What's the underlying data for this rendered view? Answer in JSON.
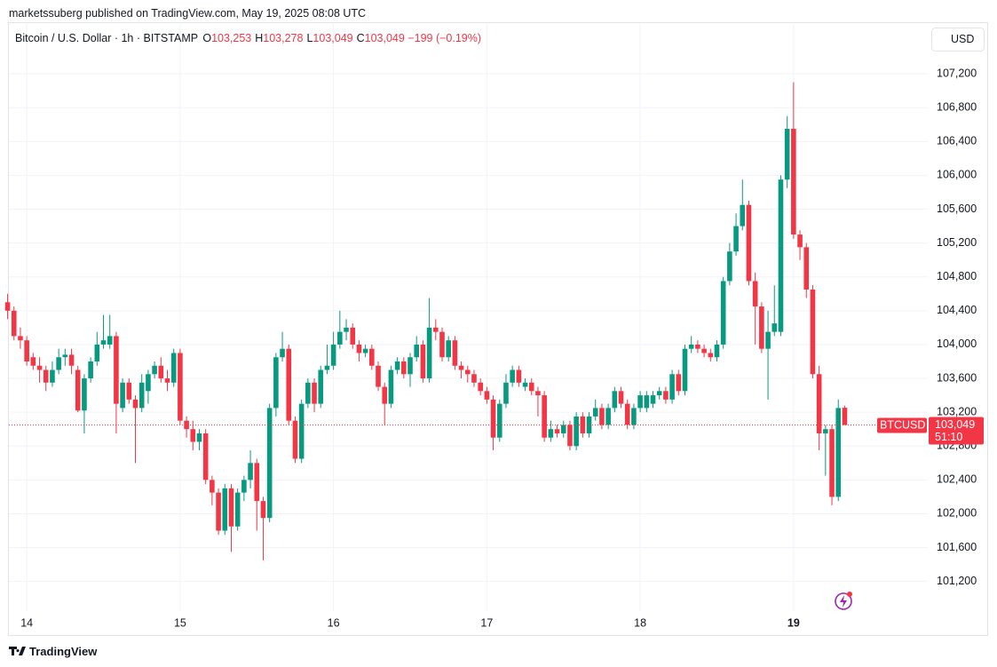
{
  "chart_data": {
    "type": "candlestick",
    "published": "marketssuberg published on TradingView.com, May 19, 2025 08:08 UTC",
    "symbol": "Bitcoin / U.S. Dollar · 1h · BITSTAMP",
    "ohlc_labels": [
      {
        "key": "O",
        "value": "103,253"
      },
      {
        "key": "H",
        "value": "103,278"
      },
      {
        "key": "L",
        "value": "103,049"
      },
      {
        "key": "C",
        "value": "103,049"
      }
    ],
    "change": "−199 (−0.19%)",
    "currency": "USD",
    "ticker": "BTCUSD",
    "last_price_label": "103,049",
    "countdown": "51:10",
    "brand": "TradingView",
    "up_color": "#089981",
    "down_color": "#f23645",
    "grid": true,
    "xlim": [
      0.2,
      144
    ],
    "xticks": [
      {
        "value": 3,
        "label": "14"
      },
      {
        "value": 27,
        "label": "15"
      },
      {
        "value": 51,
        "label": "16"
      },
      {
        "value": 75,
        "label": "17"
      },
      {
        "value": 99,
        "label": "18"
      },
      {
        "value": 123,
        "label": "19"
      }
    ],
    "ylim": [
      100850,
      107810
    ],
    "yticks": [
      {
        "value": 101200,
        "label": "101,200"
      },
      {
        "value": 101600,
        "label": "101,600"
      },
      {
        "value": 102000,
        "label": "102,000"
      },
      {
        "value": 102400,
        "label": "102,400"
      },
      {
        "value": 102800,
        "label": "102,800"
      },
      {
        "value": 103200,
        "label": "103,200"
      },
      {
        "value": 103600,
        "label": "103,600"
      },
      {
        "value": 104000,
        "label": "104,000"
      },
      {
        "value": 104400,
        "label": "104,400"
      },
      {
        "value": 104800,
        "label": "104,800"
      },
      {
        "value": 105200,
        "label": "105,200"
      },
      {
        "value": 105600,
        "label": "105,600"
      },
      {
        "value": 106000,
        "label": "106,000"
      },
      {
        "value": 106400,
        "label": "106,400"
      },
      {
        "value": 106800,
        "label": "106,800"
      },
      {
        "value": 107200,
        "label": "107,200"
      }
    ],
    "series": {
      "open": [
        104500,
        104400,
        104100,
        104050,
        103850,
        103750,
        103700,
        103550,
        103700,
        103850,
        103880,
        103700,
        103220,
        103600,
        103800,
        104000,
        104000,
        104100,
        103250,
        103550,
        103350,
        103250,
        103450,
        103650,
        103750,
        103600,
        103550,
        103900,
        103100,
        103000,
        102850,
        102950,
        102400,
        102250,
        101800,
        102300,
        101850,
        102250,
        102400,
        102600,
        102150,
        101950,
        103250,
        103850,
        103950,
        103100,
        102650,
        103300,
        103550,
        103300,
        103700,
        103750,
        104000,
        104150,
        104200,
        104000,
        103900,
        103950,
        103750,
        103500,
        103300,
        103700,
        103800,
        103650,
        103850,
        104000,
        103600,
        104200,
        104150,
        103850,
        104050,
        103750,
        103700,
        103650,
        103550,
        103450,
        103350,
        102900,
        103300,
        103550,
        103700,
        103500,
        103550,
        103450,
        103400,
        102900,
        103000,
        102950,
        103050,
        102800,
        103150,
        102950,
        103150,
        103250,
        103050,
        103250,
        103450,
        103300,
        103050,
        103250,
        103250,
        103300,
        103400,
        103450,
        103350,
        103650,
        103450,
        103950,
        104000,
        103950,
        103900,
        103850,
        104000,
        104750,
        105100,
        105400,
        105650,
        104750,
        104450,
        103950,
        104150,
        104150,
        105950,
        106550,
        105300,
        105150,
        104650,
        103650,
        102950,
        103000,
        102200,
        103253
      ],
      "high": [
        104600,
        104450,
        104200,
        104100,
        103900,
        103850,
        103750,
        103800,
        103950,
        103950,
        103950,
        103750,
        103650,
        103850,
        104150,
        104350,
        104350,
        104150,
        103600,
        103600,
        103400,
        103650,
        103700,
        103800,
        103850,
        103700,
        103950,
        103950,
        103150,
        103100,
        103000,
        103000,
        102450,
        102300,
        102350,
        102350,
        102300,
        102450,
        102750,
        102650,
        102200,
        103300,
        103900,
        104150,
        104000,
        103150,
        103350,
        103600,
        103600,
        103750,
        104000,
        104150,
        104400,
        104300,
        104250,
        104050,
        104000,
        104000,
        103800,
        103550,
        103750,
        103850,
        103850,
        103900,
        104100,
        104050,
        104550,
        104300,
        104200,
        104100,
        104100,
        103800,
        103750,
        103700,
        103600,
        103500,
        103400,
        103350,
        103650,
        103750,
        103750,
        103600,
        103600,
        103500,
        103450,
        103100,
        103050,
        103100,
        103100,
        103200,
        103200,
        103200,
        103350,
        103300,
        103300,
        103500,
        103500,
        103350,
        103300,
        103450,
        103450,
        103450,
        103500,
        103500,
        103700,
        103700,
        104000,
        104100,
        104050,
        104000,
        103950,
        104050,
        104800,
        105200,
        105550,
        105950,
        105700,
        104850,
        104500,
        104400,
        104700,
        106000,
        106700,
        107100,
        105350,
        105200,
        104700,
        103750,
        103050,
        103050,
        103350,
        103278
      ],
      "low": [
        104300,
        104050,
        103950,
        103750,
        103700,
        103550,
        103450,
        103500,
        103650,
        103750,
        103650,
        103200,
        102950,
        103550,
        103750,
        103950,
        103950,
        102950,
        103200,
        103300,
        102600,
        103200,
        103300,
        103600,
        103550,
        103450,
        103500,
        103050,
        102900,
        102750,
        102750,
        102350,
        102100,
        101750,
        101750,
        101550,
        101800,
        102150,
        102300,
        101800,
        101450,
        101900,
        103150,
        103800,
        103050,
        102600,
        102600,
        103250,
        103200,
        103250,
        103650,
        103700,
        103950,
        104050,
        103950,
        103800,
        103850,
        103700,
        103450,
        103050,
        103250,
        103650,
        103600,
        103500,
        103800,
        103550,
        103550,
        104050,
        103800,
        103800,
        103700,
        103600,
        103550,
        103500,
        103400,
        103300,
        102750,
        102850,
        103250,
        103500,
        103500,
        103450,
        103400,
        103150,
        102850,
        102850,
        102900,
        102900,
        102750,
        102750,
        102900,
        102900,
        103100,
        103000,
        103000,
        103200,
        103250,
        103000,
        103000,
        103200,
        103200,
        103250,
        103350,
        103300,
        103300,
        103400,
        103400,
        103900,
        103900,
        103850,
        103800,
        103800,
        103950,
        104700,
        105050,
        105350,
        104700,
        104000,
        103900,
        103350,
        104100,
        104100,
        105850,
        105250,
        105000,
        104550,
        103600,
        102750,
        102450,
        102100,
        102150,
        103049
      ],
      "close": [
        104400,
        104100,
        104050,
        103800,
        103750,
        103700,
        103550,
        103700,
        103850,
        103880,
        103750,
        103220,
        103600,
        103800,
        104000,
        104050,
        104100,
        103300,
        103550,
        103350,
        103250,
        103550,
        103650,
        103750,
        103600,
        103550,
        103900,
        103100,
        103000,
        102850,
        102950,
        102400,
        102250,
        101800,
        102300,
        101850,
        102250,
        102400,
        102600,
        102150,
        101950,
        103250,
        103850,
        103950,
        103100,
        102650,
        103300,
        103550,
        103300,
        103700,
        103750,
        104000,
        104150,
        104200,
        104000,
        103900,
        103950,
        103750,
        103500,
        103300,
        103700,
        103800,
        103650,
        103850,
        104000,
        103600,
        104200,
        104150,
        103850,
        104050,
        103750,
        103700,
        103650,
        103550,
        103450,
        103350,
        102900,
        103300,
        103550,
        103700,
        103550,
        103550,
        103450,
        103400,
        102900,
        103000,
        102950,
        103050,
        102800,
        103150,
        102950,
        103150,
        103250,
        103050,
        103250,
        103450,
        103300,
        103050,
        103250,
        103400,
        103400,
        103400,
        103450,
        103350,
        103650,
        103450,
        103950,
        104000,
        103950,
        103900,
        103850,
        104000,
        104750,
        105100,
        105400,
        105650,
        104750,
        104450,
        103950,
        104150,
        104250,
        105950,
        106550,
        105300,
        105150,
        104650,
        103650,
        102950,
        103000,
        102200,
        103250,
        103049
      ]
    }
  }
}
